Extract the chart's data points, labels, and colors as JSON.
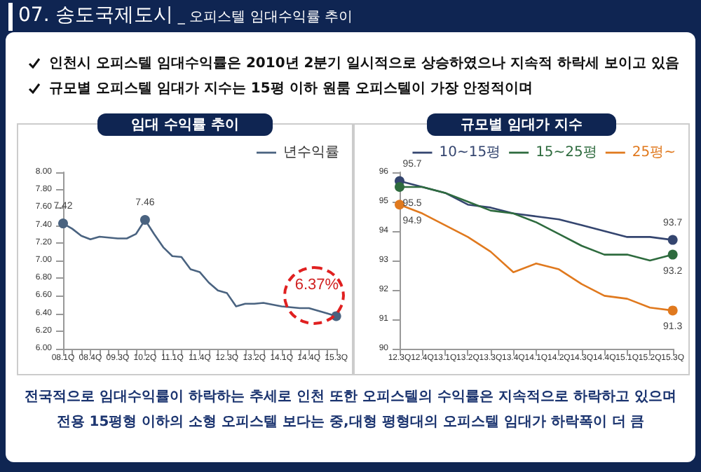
{
  "chart_data": [
    {
      "type": "line",
      "title": "임대 수익률 추이",
      "annotations": [
        "07. 송도국제도시 _ 오피스텔 임대수익률 추이",
        "인천시 오피스텔 임대수익률은 2010년 2분기 일시적으로 상승하였으나 지속적 하락세 보이고 있음",
        "규모별 오피스텔 임대가 지수는 15평 이하 원룸 오피스텔이 가장 안정적이며",
        "전국적으로 임대수익률이 하락하는 추세로 인천 또한 오피스텔의 수익률은 지속적으로 하락하고 있으며",
        "전용 15평형 이하의 소형 오피스텔 보다는 중,대형 평형대의 오피스텔 임대가 하락폭이 더 큼"
      ],
      "categories": [
        "08.1Q",
        null,
        null,
        "08.4Q",
        null,
        null,
        "09.3Q",
        null,
        null,
        "10.2Q",
        null,
        null,
        "11.1Q",
        null,
        null,
        "11.4Q",
        null,
        null,
        "12.3Q",
        null,
        null,
        "13.2Q",
        null,
        null,
        "14.1Q",
        null,
        null,
        "14.4Q",
        null,
        null,
        "15.3Q"
      ],
      "series": [
        {
          "name": "년수익률",
          "color": "#4a6380",
          "values": [
            7.42,
            7.36,
            7.28,
            7.24,
            7.27,
            7.26,
            7.25,
            7.25,
            7.3,
            7.46,
            7.3,
            7.15,
            7.05,
            7.04,
            6.9,
            6.87,
            6.75,
            6.66,
            6.63,
            6.48,
            6.51,
            6.51,
            6.52,
            6.5,
            6.48,
            6.47,
            6.46,
            6.46,
            6.43,
            6.4,
            6.37
          ],
          "value_labels": [
            "7.42",
            null,
            null,
            null,
            null,
            null,
            null,
            null,
            null,
            "7.46",
            null,
            null,
            null,
            null,
            null,
            null,
            null,
            null,
            null,
            null,
            null,
            null,
            null,
            null,
            null,
            null,
            null,
            null,
            null,
            null,
            "6.37%"
          ]
        }
      ],
      "ylim": [
        6,
        8
      ],
      "yticks": [
        {
          "value": 6,
          "label": "6.00"
        },
        {
          "value": 6.2,
          "label": "6.20"
        },
        {
          "value": 6.4,
          "label": "6.40"
        },
        {
          "value": 6.6,
          "label": "6.60"
        },
        {
          "value": 6.8,
          "label": "6.80"
        },
        {
          "value": 7,
          "label": "7.00"
        },
        {
          "value": 7.2,
          "label": "7.20"
        },
        {
          "value": 7.4,
          "label": "7.40"
        },
        {
          "value": 7.6,
          "label": "7.60"
        },
        {
          "value": 7.8,
          "label": "7.80"
        },
        {
          "value": 8,
          "label": "8.00"
        }
      ],
      "grid": false,
      "legend": "top right"
    },
    {
      "type": "line",
      "title": "규모별 임대가 지수",
      "categories": [
        "12.3Q",
        "12.4Q",
        "13.1Q",
        "13.2Q",
        "13.3Q",
        "13.4Q",
        "14.1Q",
        "14.2Q",
        "14.3Q",
        "14.4Q",
        "15.1Q",
        "15.2Q",
        "15.3Q"
      ],
      "series": [
        {
          "name": "10~15평",
          "color": "#34456f",
          "values": [
            95.7,
            95.5,
            95.3,
            94.9,
            94.8,
            94.6,
            94.5,
            94.4,
            94.2,
            94.0,
            93.8,
            93.8,
            93.7
          ],
          "value_labels": [
            "95.7",
            null,
            null,
            null,
            null,
            null,
            null,
            null,
            null,
            null,
            null,
            null,
            "93.7"
          ]
        },
        {
          "name": "15~25평",
          "color": "#2e6b3e",
          "values": [
            95.5,
            95.5,
            95.3,
            95.0,
            94.7,
            94.6,
            94.3,
            93.9,
            93.5,
            93.2,
            93.2,
            93.0,
            93.2
          ],
          "value_labels": [
            "95.5",
            null,
            null,
            null,
            null,
            null,
            null,
            null,
            null,
            null,
            null,
            null,
            "93.2"
          ]
        },
        {
          "name": "25평~",
          "color": "#e0791e",
          "values": [
            94.9,
            94.6,
            94.2,
            93.8,
            93.3,
            92.6,
            92.9,
            92.7,
            92.2,
            91.8,
            91.7,
            91.4,
            91.3
          ],
          "value_labels": [
            "94.9",
            null,
            null,
            null,
            null,
            null,
            null,
            null,
            null,
            null,
            null,
            null,
            "91.3"
          ]
        }
      ],
      "ylim": [
        90,
        96
      ],
      "yticks": [
        90,
        91,
        92,
        93,
        94,
        95,
        96
      ],
      "grid": false,
      "legend": "top right"
    }
  ]
}
